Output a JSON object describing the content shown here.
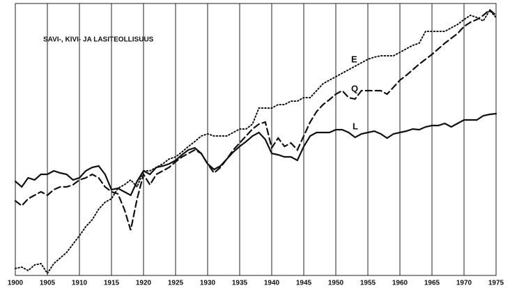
{
  "chart_data": {
    "type": "line",
    "title": "SAVI-, KIVI- JA LASITEOLLISUUS",
    "annotations": [
      "E",
      "Q",
      "L"
    ],
    "x": [
      1900,
      1901,
      1902,
      1903,
      1904,
      1905,
      1906,
      1907,
      1908,
      1909,
      1910,
      1911,
      1912,
      1913,
      1914,
      1915,
      1916,
      1917,
      1918,
      1919,
      1920,
      1921,
      1922,
      1923,
      1924,
      1925,
      1926,
      1927,
      1928,
      1929,
      1930,
      1931,
      1932,
      1933,
      1934,
      1935,
      1936,
      1937,
      1938,
      1939,
      1940,
      1941,
      1942,
      1943,
      1944,
      1945,
      1946,
      1947,
      1948,
      1949,
      1950,
      1951,
      1952,
      1953,
      1954,
      1955,
      1956,
      1957,
      1958,
      1959,
      1960,
      1961,
      1962,
      1963,
      1964,
      1965,
      1966,
      1967,
      1968,
      1969,
      1970,
      1971,
      1972,
      1973,
      1974,
      1975
    ],
    "series": [
      {
        "name": "E",
        "color": "#111111",
        "dash": "dotted",
        "values": [
          10,
          12,
          7,
          15,
          17,
          3,
          17,
          25,
          33,
          45,
          57,
          70,
          80,
          95,
          105,
          110,
          125,
          130,
          137,
          127,
          150,
          150,
          155,
          160,
          167,
          170,
          177,
          185,
          192,
          200,
          203,
          200,
          200,
          200,
          205,
          210,
          210,
          217,
          240,
          240,
          240,
          245,
          245,
          250,
          250,
          255,
          255,
          265,
          275,
          280,
          285,
          290,
          295,
          300,
          305,
          310,
          313,
          315,
          315,
          315,
          320,
          325,
          330,
          333,
          350,
          350,
          350,
          350,
          355,
          360,
          367,
          373,
          370,
          365,
          380,
          370
        ]
      },
      {
        "name": "Q",
        "color": "#111111",
        "dash": "dashed",
        "values": [
          107,
          100,
          110,
          115,
          120,
          115,
          123,
          127,
          127,
          130,
          137,
          140,
          145,
          140,
          127,
          120,
          117,
          95,
          65,
          110,
          145,
          130,
          145,
          150,
          155,
          163,
          170,
          175,
          180,
          175,
          160,
          147,
          155,
          167,
          180,
          190,
          200,
          210,
          217,
          220,
          183,
          197,
          185,
          190,
          180,
          200,
          220,
          235,
          245,
          252,
          260,
          265,
          255,
          253,
          265,
          265,
          265,
          265,
          260,
          270,
          280,
          287,
          295,
          303,
          310,
          317,
          325,
          333,
          340,
          347,
          357,
          363,
          367,
          373,
          381,
          373
        ]
      },
      {
        "name": "L",
        "color": "#111111",
        "dash": "solid",
        "values": [
          135,
          127,
          140,
          137,
          145,
          145,
          150,
          147,
          145,
          137,
          140,
          150,
          155,
          157,
          145,
          123,
          125,
          120,
          115,
          135,
          150,
          145,
          155,
          157,
          160,
          165,
          173,
          180,
          183,
          175,
          160,
          152,
          157,
          167,
          177,
          185,
          192,
          200,
          205,
          195,
          175,
          173,
          170,
          170,
          165,
          185,
          200,
          205,
          205,
          205,
          209,
          209,
          205,
          198,
          203,
          205,
          207,
          203,
          197,
          203,
          205,
          207,
          210,
          209,
          213,
          215,
          215,
          218,
          213,
          218,
          223,
          223,
          223,
          229,
          231,
          232
        ]
      }
    ],
    "xlim": [
      1900,
      1975
    ],
    "xticks": [
      1900,
      1905,
      1910,
      1915,
      1920,
      1925,
      1930,
      1935,
      1940,
      1945,
      1950,
      1955,
      1960,
      1965,
      1970,
      1975
    ],
    "ylim": [
      0,
      390
    ],
    "grid": true
  }
}
